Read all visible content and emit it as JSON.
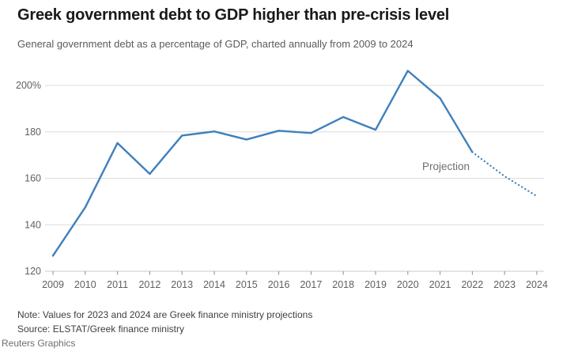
{
  "header": {
    "title": "Greek government debt to GDP higher than pre-crisis level",
    "subtitle": "General government debt as a percentage of GDP, charted annually from 2009 to 2024"
  },
  "chart_data": {
    "type": "line",
    "series_name": "General government debt as a percentage of GDP",
    "x": [
      2009,
      2010,
      2011,
      2012,
      2013,
      2014,
      2015,
      2016,
      2017,
      2018,
      2019,
      2020,
      2021,
      2022,
      2023,
      2024
    ],
    "values": [
      126.7,
      147.5,
      175.2,
      161.9,
      178.4,
      180.2,
      176.7,
      180.5,
      179.5,
      186.4,
      180.9,
      206.3,
      194.5,
      171.3,
      160.9,
      152.3
    ],
    "projection_from_year": 2022,
    "annotation": "Projection",
    "xlabel": "",
    "ylabel": "",
    "ylim": [
      120,
      210
    ],
    "xlim": [
      2009,
      2024
    ],
    "yticks": [
      120,
      140,
      160,
      180,
      200
    ],
    "ytick_labels": [
      "120",
      "140",
      "160",
      "180",
      "200%"
    ],
    "xtick_labels": [
      "2009",
      "2010",
      "2011",
      "2012",
      "2013",
      "2014",
      "2015",
      "2016",
      "2017",
      "2018",
      "2019",
      "2020",
      "2021",
      "2022",
      "2023",
      "2024"
    ],
    "grid": "horizontal",
    "legend": "none",
    "line_style": "solid 2009-2022, dotted 2022-2024 (projection)"
  },
  "footer": {
    "note": "Note: Values for 2023 and 2024 are Greek finance ministry projections",
    "source": "Source: ELSTAT/Greek finance ministry",
    "credit": "Reuters Graphics"
  },
  "colors": {
    "line": "#3f80bd",
    "grid": "#dcdcdc",
    "axis": "#c8c8c8",
    "tick": "#8c8c8c",
    "axis_text": "#606060",
    "annotation_text": "#6e6e6e",
    "title_text": "#191919",
    "subtitle_text": "#5a5a5a"
  }
}
